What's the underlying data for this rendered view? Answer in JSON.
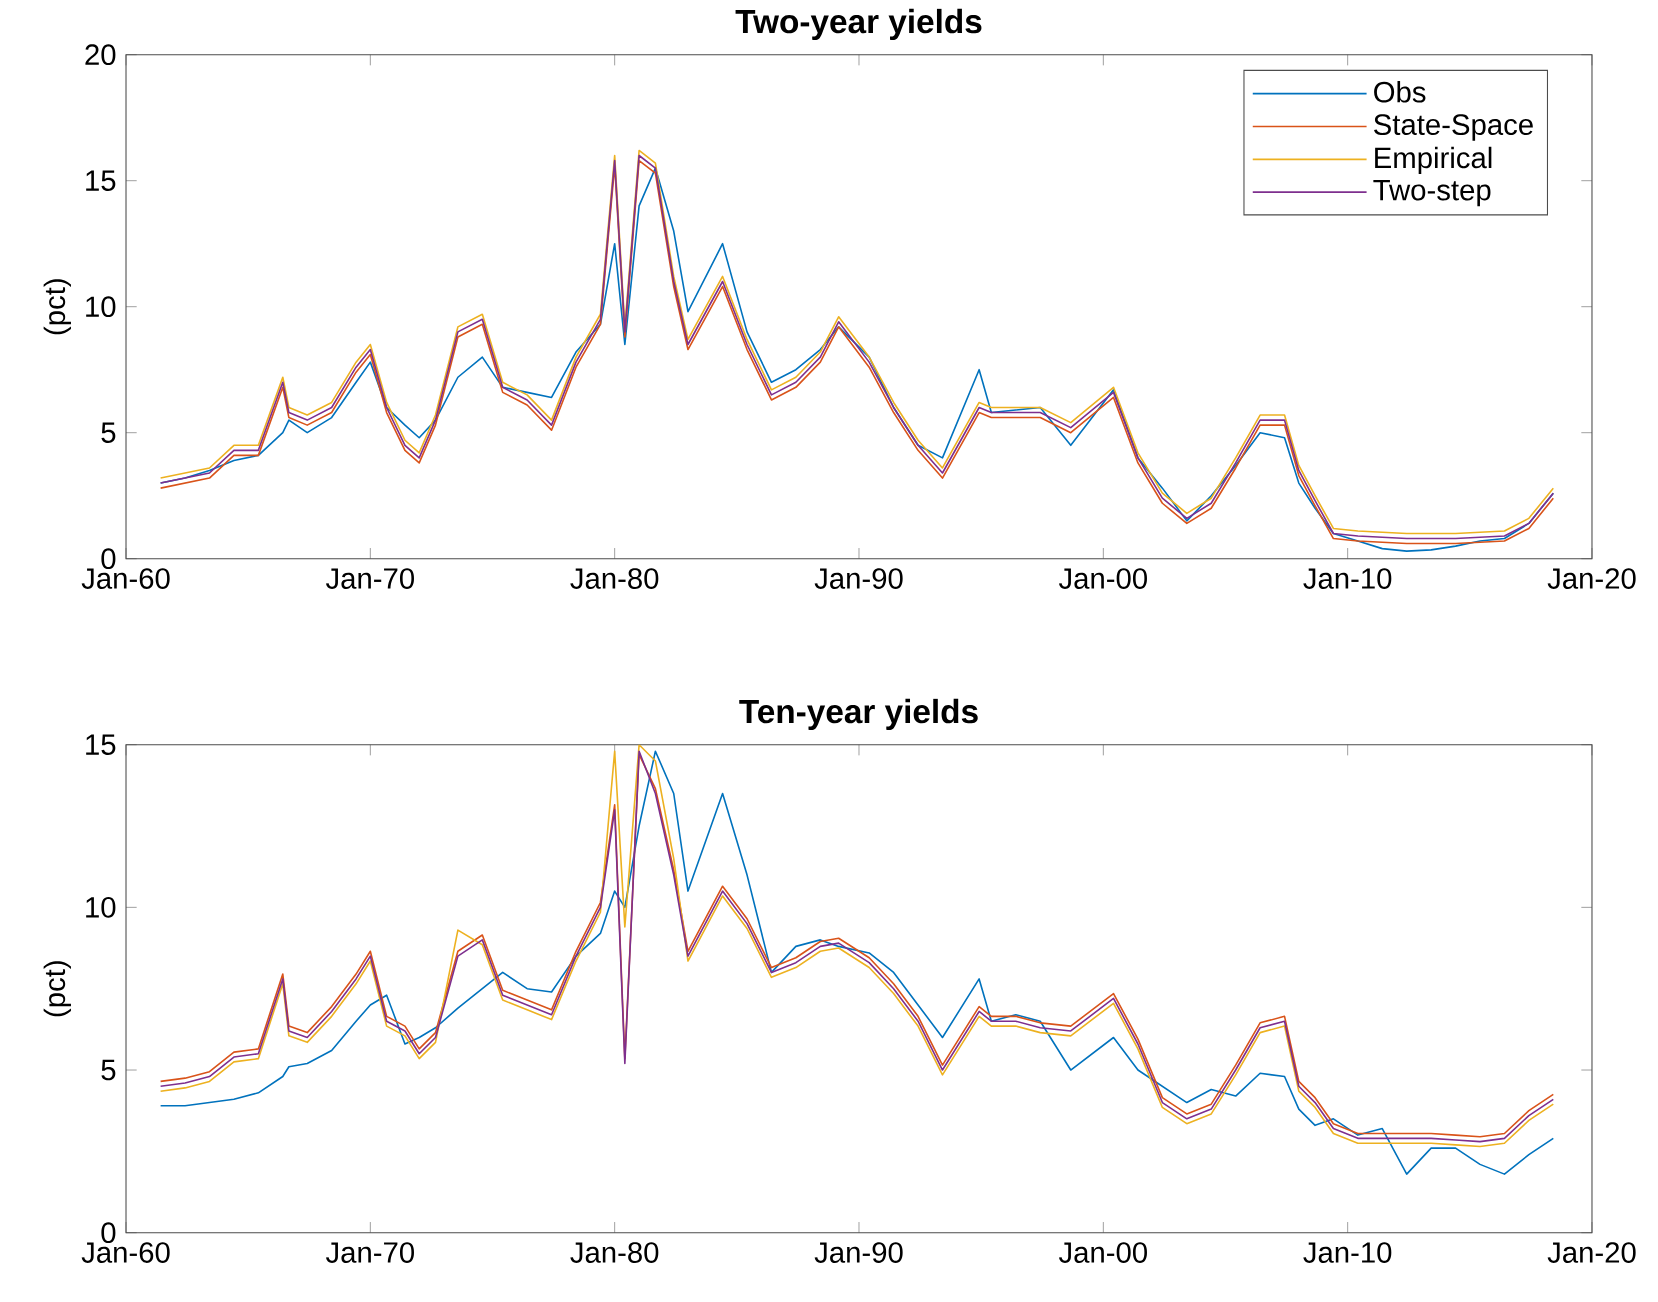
{
  "chart_data": [
    {
      "type": "line",
      "title": "Two-year yields",
      "ylabel": "(pct)",
      "legend": "top right",
      "xlim": [
        "1960-01",
        "2020-01"
      ],
      "ylim": [
        0,
        20
      ],
      "yticks": [
        0,
        5,
        10,
        15,
        20
      ],
      "xticks": [
        {
          "value": "1960-01",
          "label": "Jan-60"
        },
        {
          "value": "1970-01",
          "label": "Jan-70"
        },
        {
          "value": "1980-01",
          "label": "Jan-80"
        },
        {
          "value": "1990-01",
          "label": "Jan-90"
        },
        {
          "value": "2000-01",
          "label": "Jan-00"
        },
        {
          "value": "2010-01",
          "label": "Jan-10"
        },
        {
          "value": "2020-01",
          "label": "Jan-20"
        }
      ],
      "x": [
        "1961-06",
        "1962-06",
        "1963-06",
        "1964-06",
        "1965-06",
        "1966-06",
        "1966-09",
        "1967-06",
        "1968-06",
        "1969-06",
        "1970-01",
        "1970-09",
        "1971-06",
        "1972-01",
        "1972-09",
        "1973-08",
        "1974-08",
        "1975-06",
        "1976-06",
        "1977-06",
        "1978-06",
        "1979-06",
        "1980-01",
        "1980-06",
        "1981-01",
        "1981-09",
        "1982-06",
        "1983-01",
        "1984-06",
        "1985-06",
        "1986-06",
        "1987-06",
        "1988-06",
        "1989-03",
        "1990-06",
        "1991-06",
        "1992-06",
        "1993-06",
        "1994-12",
        "1995-06",
        "1996-06",
        "1997-06",
        "1998-09",
        "2000-06",
        "2001-06",
        "2002-06",
        "2003-06",
        "2004-06",
        "2005-06",
        "2006-06",
        "2007-06",
        "2008-01",
        "2008-09",
        "2009-06",
        "2010-06",
        "2011-06",
        "2012-06",
        "2013-06",
        "2014-06",
        "2015-06",
        "2016-06",
        "2017-06",
        "2018-06"
      ],
      "series": [
        {
          "name": "Obs",
          "color": "#0072bd",
          "values": [
            3.0,
            3.2,
            3.5,
            3.9,
            4.1,
            5.0,
            5.5,
            5.0,
            5.6,
            7.0,
            7.8,
            6.0,
            5.3,
            4.8,
            5.5,
            7.2,
            8.0,
            6.8,
            6.6,
            6.4,
            8.2,
            9.3,
            12.5,
            8.5,
            14.0,
            15.5,
            13.0,
            9.8,
            12.5,
            9.0,
            7.0,
            7.5,
            8.3,
            9.2,
            8.0,
            6.0,
            4.5,
            4.0,
            7.5,
            5.8,
            5.9,
            6.0,
            4.5,
            6.7,
            4.0,
            2.8,
            1.5,
            2.5,
            3.7,
            5.0,
            4.8,
            3.0,
            2.0,
            1.0,
            0.7,
            0.4,
            0.3,
            0.35,
            0.5,
            0.7,
            0.8,
            1.4,
            2.6
          ]
        },
        {
          "name": "State-Space",
          "color": "#d95319",
          "values": [
            2.8,
            3.0,
            3.2,
            4.1,
            4.1,
            6.8,
            5.6,
            5.3,
            5.8,
            7.4,
            8.1,
            5.8,
            4.3,
            3.8,
            5.3,
            8.8,
            9.3,
            6.6,
            6.1,
            5.1,
            7.6,
            9.3,
            15.6,
            8.8,
            15.8,
            15.3,
            10.8,
            8.3,
            10.8,
            8.3,
            6.3,
            6.8,
            7.8,
            9.2,
            7.6,
            5.8,
            4.3,
            3.2,
            5.8,
            5.6,
            5.6,
            5.6,
            5.0,
            6.4,
            3.8,
            2.2,
            1.4,
            2.0,
            3.6,
            5.3,
            5.3,
            3.3,
            2.1,
            0.8,
            0.7,
            0.65,
            0.6,
            0.6,
            0.6,
            0.65,
            0.7,
            1.2,
            2.4
          ]
        },
        {
          "name": "Empirical",
          "color": "#edb120",
          "values": [
            3.2,
            3.4,
            3.6,
            4.5,
            4.5,
            7.2,
            6.0,
            5.7,
            6.2,
            7.8,
            8.5,
            6.2,
            4.7,
            4.2,
            5.7,
            9.2,
            9.7,
            7.0,
            6.5,
            5.5,
            8.0,
            9.7,
            16.0,
            9.2,
            16.2,
            15.7,
            11.2,
            8.7,
            11.2,
            8.7,
            6.7,
            7.2,
            8.2,
            9.6,
            8.0,
            6.2,
            4.7,
            3.6,
            6.2,
            6.0,
            6.0,
            6.0,
            5.4,
            6.8,
            4.2,
            2.6,
            1.8,
            2.4,
            4.0,
            5.7,
            5.7,
            3.7,
            2.5,
            1.2,
            1.1,
            1.05,
            1.0,
            1.0,
            1.0,
            1.05,
            1.1,
            1.6,
            2.8
          ]
        },
        {
          "name": "Two-step",
          "color": "#7e2f8e",
          "values": [
            3.0,
            3.2,
            3.4,
            4.3,
            4.3,
            7.0,
            5.8,
            5.5,
            6.0,
            7.6,
            8.3,
            6.0,
            4.5,
            4.0,
            5.5,
            9.0,
            9.5,
            6.8,
            6.3,
            5.3,
            7.8,
            9.5,
            15.8,
            9.0,
            16.0,
            15.5,
            11.0,
            8.5,
            11.0,
            8.5,
            6.5,
            7.0,
            8.0,
            9.4,
            7.8,
            6.0,
            4.5,
            3.4,
            6.0,
            5.8,
            5.8,
            5.8,
            5.2,
            6.6,
            4.0,
            2.4,
            1.6,
            2.2,
            3.8,
            5.5,
            5.5,
            3.5,
            2.3,
            1.0,
            0.9,
            0.85,
            0.8,
            0.8,
            0.8,
            0.85,
            0.9,
            1.4,
            2.6
          ]
        }
      ]
    },
    {
      "type": "line",
      "title": "Ten-year yields",
      "ylabel": "(pct)",
      "xlim": [
        "1960-01",
        "2020-01"
      ],
      "ylim": [
        0,
        15
      ],
      "yticks": [
        0,
        5,
        10,
        15
      ],
      "xticks": [
        {
          "value": "1960-01",
          "label": "Jan-60"
        },
        {
          "value": "1970-01",
          "label": "Jan-70"
        },
        {
          "value": "1980-01",
          "label": "Jan-80"
        },
        {
          "value": "1990-01",
          "label": "Jan-90"
        },
        {
          "value": "2000-01",
          "label": "Jan-00"
        },
        {
          "value": "2010-01",
          "label": "Jan-10"
        },
        {
          "value": "2020-01",
          "label": "Jan-20"
        }
      ],
      "x": [
        "1961-06",
        "1962-06",
        "1963-06",
        "1964-06",
        "1965-06",
        "1966-06",
        "1966-09",
        "1967-06",
        "1968-06",
        "1969-06",
        "1970-01",
        "1970-09",
        "1971-06",
        "1972-01",
        "1972-09",
        "1973-08",
        "1974-08",
        "1975-06",
        "1976-06",
        "1977-06",
        "1978-06",
        "1979-06",
        "1980-01",
        "1980-06",
        "1981-01",
        "1981-09",
        "1982-06",
        "1983-01",
        "1984-06",
        "1985-06",
        "1986-06",
        "1987-06",
        "1988-06",
        "1989-03",
        "1990-06",
        "1991-06",
        "1992-06",
        "1993-06",
        "1994-12",
        "1995-06",
        "1996-06",
        "1997-06",
        "1998-09",
        "2000-06",
        "2001-06",
        "2002-06",
        "2003-06",
        "2004-06",
        "2005-06",
        "2006-06",
        "2007-06",
        "2008-01",
        "2008-09",
        "2009-06",
        "2010-06",
        "2011-06",
        "2012-06",
        "2013-06",
        "2014-06",
        "2015-06",
        "2016-06",
        "2017-06",
        "2018-06"
      ],
      "series": [
        {
          "color": "#0072bd",
          "values": [
            3.9,
            3.9,
            4.0,
            4.1,
            4.3,
            4.8,
            5.1,
            5.2,
            5.6,
            6.5,
            7.0,
            7.3,
            5.8,
            6.0,
            6.3,
            6.9,
            7.5,
            8.0,
            7.5,
            7.4,
            8.5,
            9.2,
            10.5,
            10.0,
            12.5,
            14.8,
            13.5,
            10.5,
            13.5,
            11.0,
            8.0,
            8.8,
            9.0,
            8.8,
            8.6,
            8.0,
            7.0,
            6.0,
            7.8,
            6.5,
            6.7,
            6.5,
            5.0,
            6.0,
            5.0,
            4.5,
            4.0,
            4.4,
            4.2,
            4.9,
            4.8,
            3.8,
            3.3,
            3.5,
            3.0,
            3.2,
            1.8,
            2.6,
            2.6,
            2.1,
            1.8,
            2.4,
            2.9
          ]
        },
        {
          "color": "#d95319",
          "values": [
            4.65,
            4.75,
            4.95,
            5.55,
            5.65,
            7.95,
            6.35,
            6.15,
            6.95,
            7.95,
            8.65,
            6.65,
            6.35,
            5.65,
            6.15,
            8.65,
            9.15,
            7.45,
            7.15,
            6.85,
            8.65,
            10.15,
            13.15,
            5.35,
            14.7,
            13.65,
            11.15,
            8.65,
            10.65,
            9.65,
            8.15,
            8.45,
            8.95,
            9.05,
            8.45,
            7.65,
            6.65,
            5.15,
            6.95,
            6.65,
            6.65,
            6.45,
            6.35,
            7.35,
            5.95,
            4.15,
            3.65,
            3.95,
            5.15,
            6.45,
            6.65,
            4.65,
            4.15,
            3.35,
            3.05,
            3.05,
            3.05,
            3.05,
            3.0,
            2.95,
            3.05,
            3.75,
            4.25
          ]
        },
        {
          "color": "#edb120",
          "values": [
            4.35,
            4.45,
            4.65,
            5.25,
            5.35,
            7.65,
            6.05,
            5.85,
            6.65,
            7.65,
            8.35,
            6.35,
            6.05,
            5.35,
            5.85,
            9.3,
            8.85,
            7.15,
            6.85,
            6.55,
            8.35,
            9.85,
            14.8,
            9.4,
            15.0,
            14.5,
            11.5,
            8.35,
            10.35,
            9.35,
            7.85,
            8.15,
            8.65,
            8.75,
            8.15,
            7.35,
            6.35,
            4.85,
            6.65,
            6.35,
            6.35,
            6.15,
            6.05,
            7.05,
            5.65,
            3.85,
            3.35,
            3.65,
            4.85,
            6.15,
            6.35,
            4.35,
            3.85,
            3.05,
            2.75,
            2.75,
            2.75,
            2.75,
            2.7,
            2.65,
            2.75,
            3.45,
            3.95
          ]
        },
        {
          "color": "#7e2f8e",
          "values": [
            4.5,
            4.6,
            4.8,
            5.4,
            5.5,
            7.8,
            6.2,
            6.0,
            6.8,
            7.8,
            8.5,
            6.5,
            6.2,
            5.5,
            6.0,
            8.5,
            9.0,
            7.3,
            7.0,
            6.7,
            8.5,
            10.0,
            13.0,
            5.2,
            14.8,
            13.5,
            11.0,
            8.5,
            10.5,
            9.5,
            8.0,
            8.3,
            8.8,
            8.9,
            8.3,
            7.5,
            6.5,
            5.0,
            6.8,
            6.5,
            6.5,
            6.3,
            6.2,
            7.2,
            5.8,
            4.0,
            3.5,
            3.8,
            5.0,
            6.3,
            6.5,
            4.5,
            4.0,
            3.2,
            2.9,
            2.9,
            2.9,
            2.9,
            2.85,
            2.8,
            2.9,
            3.6,
            4.1
          ]
        }
      ]
    }
  ]
}
